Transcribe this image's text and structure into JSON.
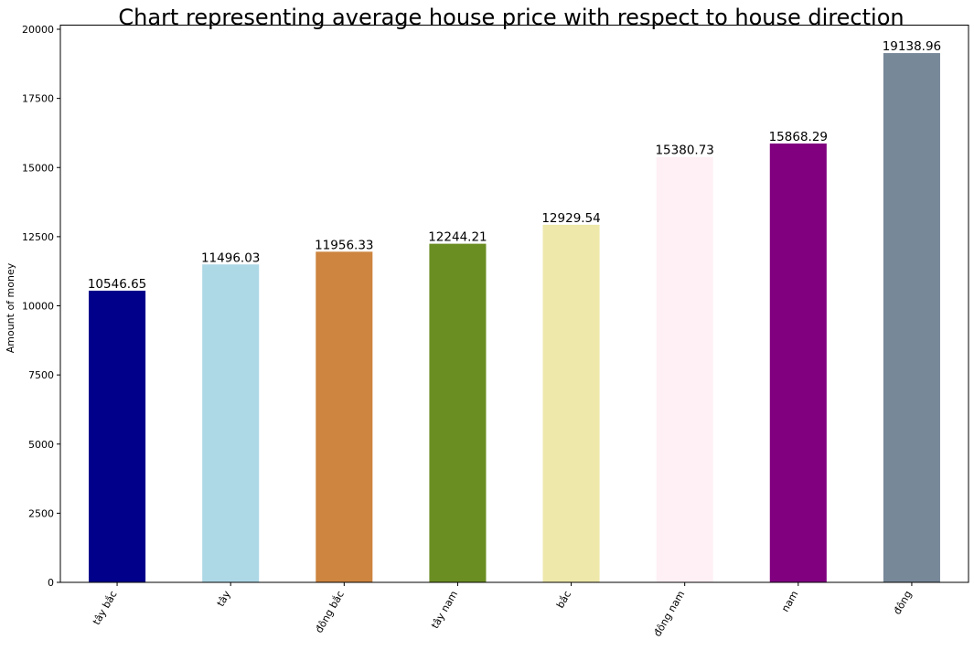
{
  "chart_data": {
    "type": "bar",
    "title": "Chart representing average house price with respect to house direction",
    "xlabel": "",
    "ylabel": "Amount of money",
    "categories": [
      "tây bắc",
      "tây",
      "đông bắc",
      "tây nam",
      "bắc",
      "đông nam",
      "nam",
      "đông"
    ],
    "values": [
      10546.65,
      11496.03,
      11956.33,
      12244.21,
      12929.54,
      15380.73,
      15868.29,
      19138.96
    ],
    "data_labels": [
      "10546.65",
      "11496.03",
      "11956.33",
      "12244.21",
      "12929.54",
      "15380.73",
      "15868.29",
      "19138.96"
    ],
    "colors": [
      "#00008b",
      "#add8e6",
      "#cd853f",
      "#6b8e23",
      "#eee8aa",
      "#fff0f5",
      "#800080",
      "#778899"
    ],
    "ylim": [
      0,
      20000
    ],
    "yticks": [
      0,
      2500,
      5000,
      7500,
      10000,
      12500,
      15000,
      17500,
      20000
    ],
    "ytick_labels": [
      "0",
      "2500",
      "5000",
      "7500",
      "10000",
      "12500",
      "15000",
      "17500",
      "20000"
    ],
    "grid": false,
    "legend": "none",
    "xtick_rotation": 60
  }
}
